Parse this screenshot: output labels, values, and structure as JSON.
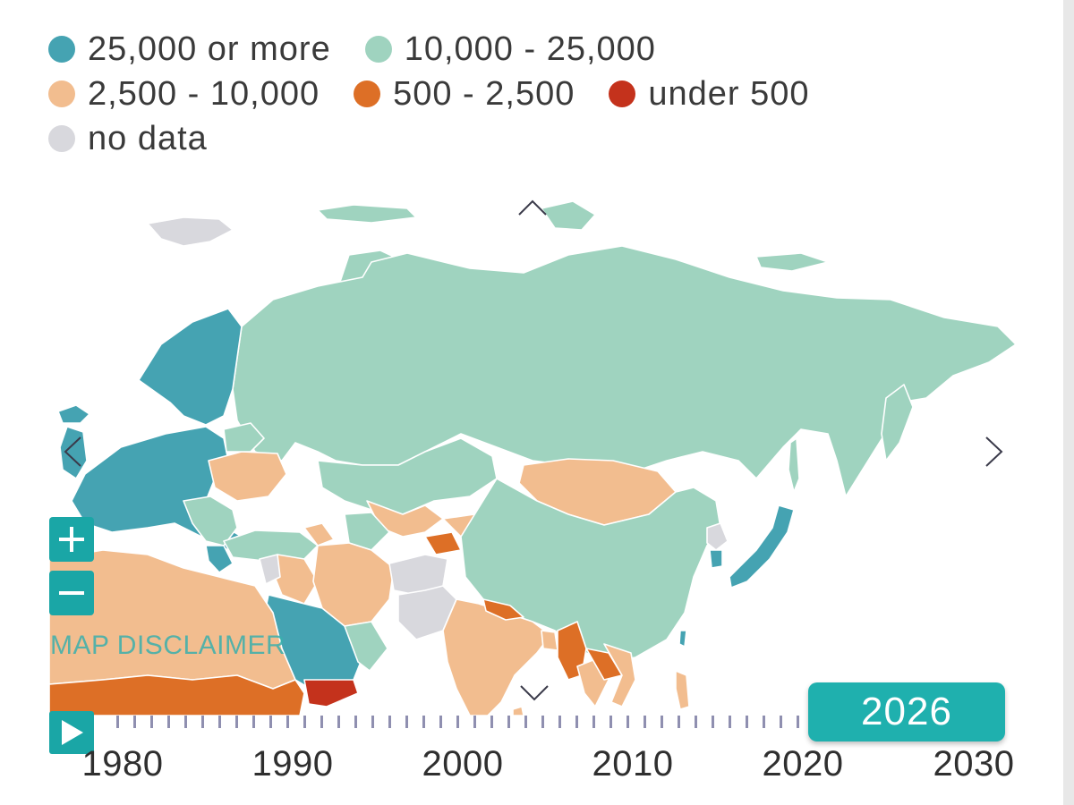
{
  "legend": {
    "items": [
      {
        "label": "25,000 or more",
        "color": "#45a3b2"
      },
      {
        "label": "10,000 - 25,000",
        "color": "#9fd3bf"
      },
      {
        "label": "2,500 - 10,000",
        "color": "#f2bd8f"
      },
      {
        "label": "500 - 2,500",
        "color": "#dd6f26"
      },
      {
        "label": "under 500",
        "color": "#c4321c"
      },
      {
        "label": "no data",
        "color": "#d8d8dd"
      }
    ]
  },
  "map": {
    "disclaimer": "MAP DISCLAIMER",
    "zoom_in_icon": "plus-icon",
    "zoom_out_icon": "minus-icon",
    "nav_icons": [
      "chevron-up-icon",
      "chevron-down-icon",
      "chevron-left-icon",
      "chevron-right-icon"
    ]
  },
  "timeline": {
    "labels": [
      "1980",
      "1990",
      "2000",
      "2010",
      "2020",
      "2030"
    ],
    "current_year": "2026",
    "play_icon": "play-icon"
  }
}
